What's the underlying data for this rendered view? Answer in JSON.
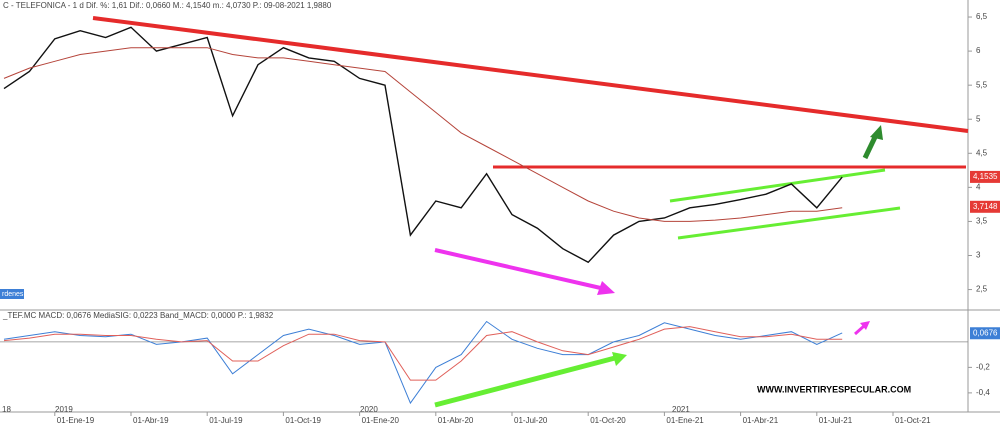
{
  "chart_data": [
    {
      "type": "line",
      "title": "C - TELEFONICA - 1 d  Dif. %: 1,61  Dif.: 0,0660  M.: 4,1540  m.: 4,0730  P.: 09-08-2021  1,9880",
      "categories": [
        null,
        null,
        "01-Ene-19",
        null,
        null,
        "01-Abr-19",
        null,
        null,
        "01-Jul-19",
        null,
        null,
        "01-Oct-19",
        null,
        null,
        "01-Ene-20",
        null,
        null,
        "01-Abr-20",
        null,
        null,
        "01-Jul-20",
        null,
        null,
        "01-Oct-20",
        null,
        null,
        "01-Ene-21",
        null,
        null,
        "01-Abr-21",
        null,
        null,
        "01-Jul-21",
        null,
        null,
        "01-Oct-21",
        null
      ],
      "year_labels": [
        "18",
        "2019",
        "2020",
        "2021"
      ],
      "series": [
        {
          "color": "#111111",
          "values": [
            5.45,
            5.7,
            6.18,
            6.3,
            6.2,
            6.35,
            6.0,
            6.1,
            6.2,
            5.05,
            5.8,
            6.05,
            5.9,
            5.85,
            5.6,
            5.5,
            3.3,
            3.8,
            3.7,
            4.2,
            3.6,
            3.4,
            3.1,
            2.9,
            3.3,
            3.5,
            3.55,
            3.7,
            3.75,
            3.82,
            3.9,
            4.05,
            3.7,
            4.15,
            null,
            null,
            null
          ]
        },
        {
          "color": "#b5443a",
          "values": [
            5.6,
            5.75,
            5.85,
            5.95,
            6.0,
            6.05,
            6.05,
            6.05,
            6.05,
            5.95,
            5.9,
            5.9,
            5.85,
            5.8,
            5.75,
            5.7,
            5.4,
            5.1,
            4.8,
            4.6,
            4.4,
            4.2,
            4.0,
            3.8,
            3.65,
            3.55,
            3.5,
            3.5,
            3.52,
            3.55,
            3.6,
            3.65,
            3.65,
            3.7,
            null,
            null,
            null
          ]
        }
      ],
      "last_values": {
        "values": [
          4.1535,
          3.7148
        ],
        "value_labels": [
          "4,1535",
          "3,7148"
        ],
        "color": "#e53935"
      },
      "ylim": [
        2.2,
        6.75
      ],
      "yticks": [
        {
          "value": 6.5,
          "label": "6,5"
        },
        6,
        {
          "value": 5.5,
          "label": "5,5"
        },
        5,
        {
          "value": 4.5,
          "label": "4,5"
        },
        4,
        {
          "value": 3.5,
          "label": "3,5"
        },
        3,
        {
          "value": 2.5,
          "label": "2,5"
        }
      ],
      "tag": "rdenes"
    },
    {
      "type": "line",
      "title": "_TEF.MC  MACD: 0,0676  MediaSIG: 0,0223  Band_MACD: 0,0000  P.: 1,9832",
      "series": [
        {
          "color": "#3d7fd6",
          "values": [
            0.02,
            0.05,
            0.08,
            0.05,
            0.04,
            0.06,
            -0.02,
            0.0,
            0.03,
            -0.25,
            -0.1,
            0.05,
            0.1,
            0.05,
            -0.02,
            0.0,
            -0.48,
            -0.2,
            -0.1,
            0.16,
            0.02,
            -0.05,
            -0.1,
            -0.1,
            0.0,
            0.05,
            0.15,
            0.1,
            0.05,
            0.02,
            0.05,
            0.08,
            -0.02,
            0.07,
            null,
            null,
            null
          ]
        },
        {
          "color": "#e0605a",
          "values": [
            0.01,
            0.03,
            0.06,
            0.06,
            0.05,
            0.05,
            0.02,
            0.0,
            0.01,
            -0.15,
            -0.15,
            -0.03,
            0.06,
            0.06,
            0.01,
            0.0,
            -0.3,
            -0.3,
            -0.15,
            0.05,
            0.08,
            0.0,
            -0.07,
            -0.1,
            -0.04,
            0.02,
            0.1,
            0.12,
            0.08,
            0.04,
            0.04,
            0.06,
            0.02,
            0.02,
            null,
            null,
            null
          ]
        }
      ],
      "last_values": {
        "values": [
          0.0676
        ],
        "value_labels": [
          "0,0676"
        ],
        "color": "#3d7fd6"
      },
      "ylim": [
        -0.55,
        0.25
      ],
      "yticks": [
        {
          "value": -0.2,
          "label": "-0,2"
        },
        {
          "value": -0.4,
          "label": "-0,4"
        }
      ],
      "annotation": "WWW.INVERTIRYESPECULAR.COM"
    }
  ]
}
